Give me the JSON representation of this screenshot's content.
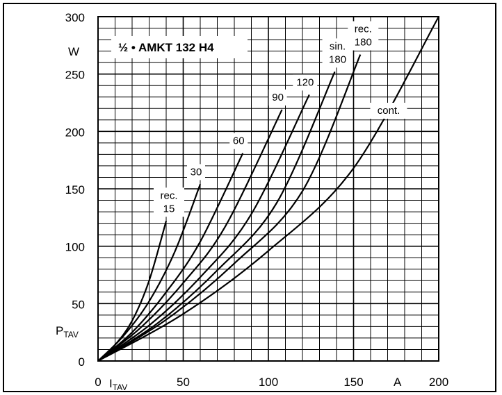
{
  "chart_data": {
    "type": "line",
    "title": "½ • AMKT 132 H4",
    "xlabel_symbol": "I",
    "xlabel_sub": "TAV",
    "xunit": "A",
    "ylabel_symbol": "P",
    "ylabel_sub": "TAV",
    "yunit": "W",
    "xlim": [
      0,
      200
    ],
    "ylim": [
      0,
      300
    ],
    "x_ticks": [
      0,
      50,
      100,
      150,
      200
    ],
    "x_tick_labels": [
      "0",
      "50",
      "100",
      "150",
      "200"
    ],
    "y_ticks": [
      0,
      50,
      100,
      150,
      200,
      250,
      300
    ],
    "y_tick_labels": [
      "0",
      "50",
      "100",
      "150",
      "200",
      "250",
      "300"
    ],
    "grid": true,
    "series": [
      {
        "name": "rec. 15",
        "x": [
          0,
          10,
          20,
          30,
          40
        ],
        "y": [
          0,
          14,
          35,
          70,
          122
        ]
      },
      {
        "name": "30",
        "x": [
          0,
          15,
          30,
          45,
          60
        ],
        "y": [
          0,
          22,
          52,
          95,
          154
        ]
      },
      {
        "name": "60",
        "x": [
          0,
          20,
          40,
          60,
          85
        ],
        "y": [
          0,
          25,
          60,
          104,
          181
        ]
      },
      {
        "name": "90",
        "x": [
          0,
          25,
          50,
          75,
          108
        ],
        "y": [
          0,
          29,
          68,
          118,
          219
        ]
      },
      {
        "name": "120",
        "x": [
          0,
          30,
          60,
          90,
          124
        ],
        "y": [
          0,
          31,
          73,
          128,
          232
        ]
      },
      {
        "name": "sin. 180",
        "x": [
          0,
          35,
          70,
          105,
          139
        ],
        "y": [
          0,
          33,
          79,
          138,
          252
        ]
      },
      {
        "name": "rec. 180",
        "x": [
          0,
          40,
          80,
          120,
          154
        ],
        "y": [
          0,
          36,
          85,
          148,
          267
        ]
      },
      {
        "name": "cont.",
        "x": [
          0,
          50,
          100,
          150,
          200
        ],
        "y": [
          0,
          41,
          96,
          168,
          300
        ]
      }
    ],
    "curve_labels": [
      {
        "lines": [
          "rec.",
          "15"
        ],
        "series": "rec. 15"
      },
      {
        "lines": [
          "30"
        ],
        "series": "30"
      },
      {
        "lines": [
          "60"
        ],
        "series": "60"
      },
      {
        "lines": [
          "90"
        ],
        "series": "90"
      },
      {
        "lines": [
          "120"
        ],
        "series": "120"
      },
      {
        "lines": [
          "sin.",
          "180"
        ],
        "series": "sin. 180"
      },
      {
        "lines": [
          "rec.",
          "180"
        ],
        "series": "rec. 180"
      },
      {
        "lines": [
          "cont."
        ],
        "series": "cont."
      }
    ]
  }
}
